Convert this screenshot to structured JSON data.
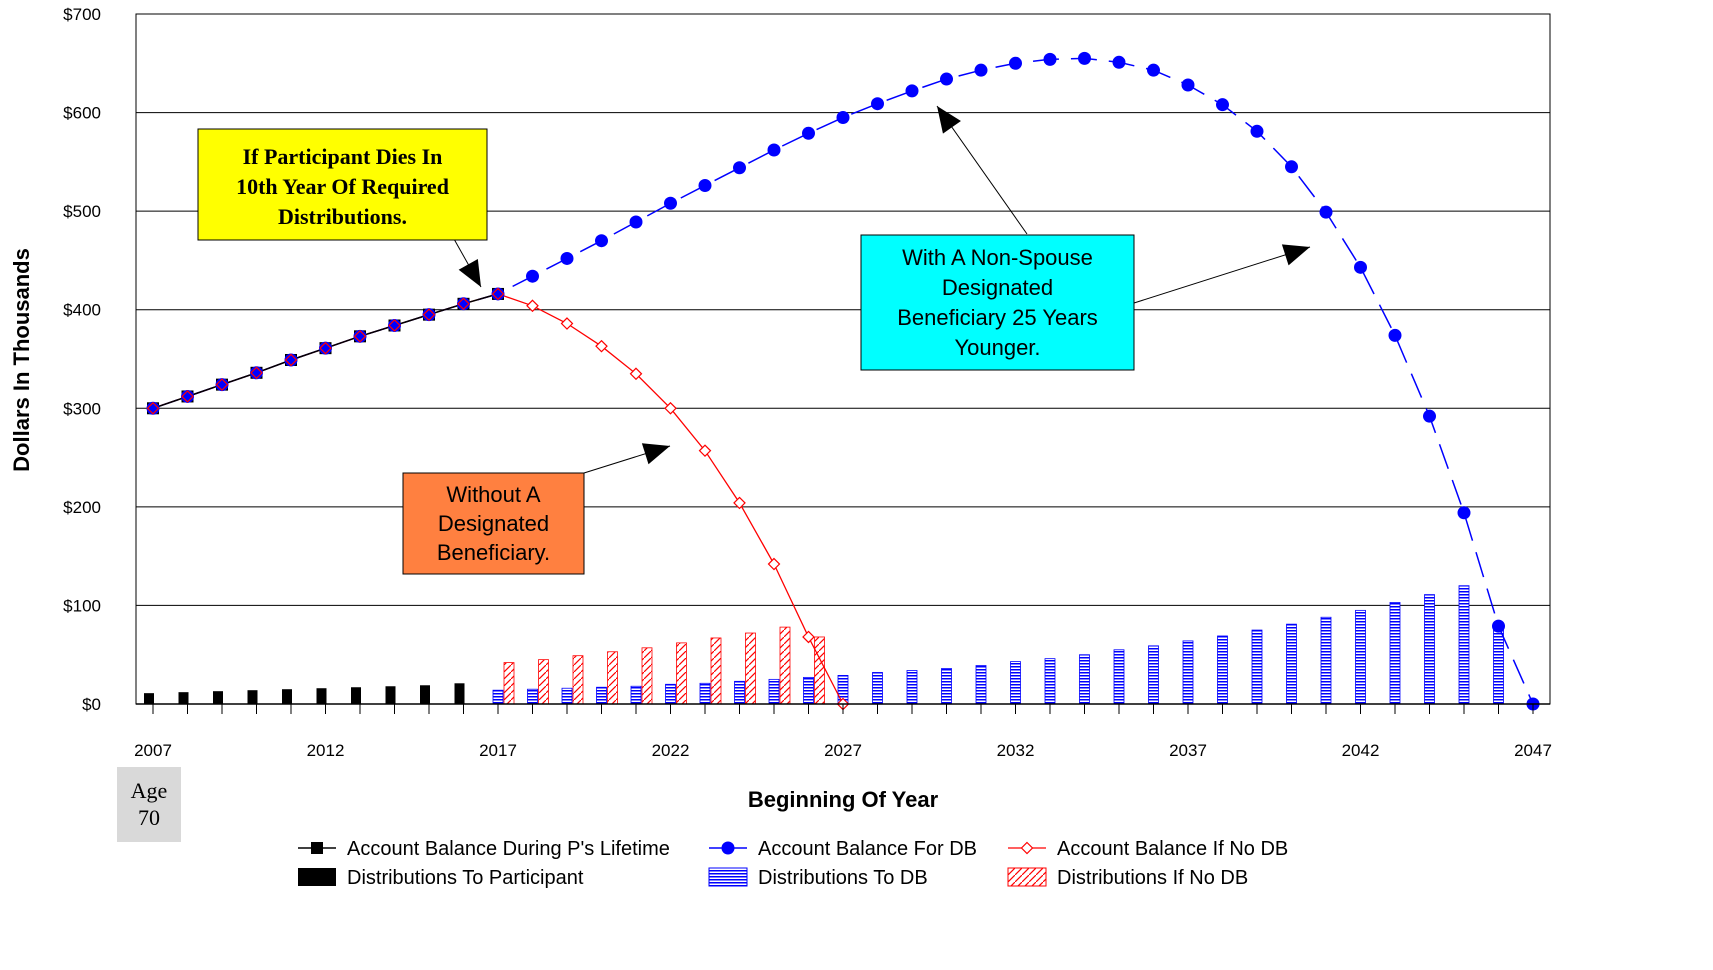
{
  "chart_data": {
    "type": "line",
    "ylabel": "Dollars In Thousands",
    "xlabel": "Beginning Of Year",
    "ylim": [
      0,
      700
    ],
    "xlim": [
      2007,
      2047
    ],
    "y_ticks": [
      0,
      100,
      200,
      300,
      400,
      500,
      600,
      700
    ],
    "y_tick_labels": [
      "$0",
      "$100",
      "$200",
      "$300",
      "$400",
      "$500",
      "$600",
      "$700"
    ],
    "x_ticks": [
      2007,
      2012,
      2017,
      2022,
      2027,
      2032,
      2037,
      2042,
      2047
    ],
    "x_tick_labels": [
      "2007",
      "2012",
      "2017",
      "2022",
      "2027",
      "2032",
      "2037",
      "2042",
      "2047"
    ],
    "grid": "horizontal",
    "series": [
      {
        "name": "Account Balance During P's Lifetime",
        "kind": "line-square-markers",
        "x": [
          2007,
          2008,
          2009,
          2010,
          2011,
          2012,
          2013,
          2014,
          2015,
          2016,
          2017
        ],
        "values": [
          300,
          312,
          324,
          336,
          349,
          361,
          373,
          384,
          395,
          406,
          416
        ]
      },
      {
        "name": "Account Balance For DB",
        "kind": "dashed-line-circle-markers",
        "x": [
          2007,
          2008,
          2009,
          2010,
          2011,
          2012,
          2013,
          2014,
          2015,
          2016,
          2017,
          2018,
          2019,
          2020,
          2021,
          2022,
          2023,
          2024,
          2025,
          2026,
          2027,
          2028,
          2029,
          2030,
          2031,
          2032,
          2033,
          2034,
          2035,
          2036,
          2037,
          2038,
          2039,
          2040,
          2041,
          2042,
          2043,
          2044,
          2045,
          2046,
          2047
        ],
        "values": [
          300,
          312,
          324,
          336,
          349,
          361,
          373,
          384,
          395,
          406,
          416,
          434,
          452,
          470,
          489,
          508,
          526,
          544,
          562,
          579,
          595,
          609,
          622,
          634,
          643,
          650,
          654,
          655,
          651,
          643,
          628,
          608,
          581,
          545,
          499,
          443,
          374,
          292,
          194,
          79,
          0
        ]
      },
      {
        "name": "Account Balance If No DB",
        "kind": "line-diamond-markers",
        "x": [
          2007,
          2008,
          2009,
          2010,
          2011,
          2012,
          2013,
          2014,
          2015,
          2016,
          2017,
          2018,
          2019,
          2020,
          2021,
          2022,
          2023,
          2024,
          2025,
          2026,
          2027
        ],
        "values": [
          300,
          312,
          324,
          336,
          349,
          361,
          373,
          384,
          395,
          406,
          416,
          404,
          386,
          363,
          335,
          300,
          257,
          204,
          142,
          68,
          0
        ]
      },
      {
        "name": "Distributions To Participant",
        "kind": "bar-solid",
        "x": [
          2007,
          2008,
          2009,
          2010,
          2011,
          2012,
          2013,
          2014,
          2015,
          2016
        ],
        "values": [
          11,
          12,
          13,
          14,
          15,
          16,
          17,
          18,
          19,
          21
        ]
      },
      {
        "name": "Distributions To DB",
        "kind": "bar-horizontal-hatch",
        "x": [
          2017,
          2018,
          2019,
          2020,
          2021,
          2022,
          2023,
          2024,
          2025,
          2026,
          2027,
          2028,
          2029,
          2030,
          2031,
          2032,
          2033,
          2034,
          2035,
          2036,
          2037,
          2038,
          2039,
          2040,
          2041,
          2042,
          2043,
          2044,
          2045,
          2046
        ],
        "values": [
          14,
          15,
          16,
          17,
          18,
          20,
          21,
          23,
          25,
          27,
          29,
          32,
          34,
          36,
          39,
          43,
          46,
          50,
          55,
          59,
          64,
          69,
          75,
          81,
          88,
          95,
          103,
          111,
          120,
          79
        ]
      },
      {
        "name": "Distributions If No DB",
        "kind": "bar-diagonal-hatch",
        "x": [
          2017,
          2018,
          2019,
          2020,
          2021,
          2022,
          2023,
          2024,
          2025,
          2026
        ],
        "values": [
          42,
          45,
          49,
          53,
          57,
          62,
          67,
          72,
          78,
          68
        ]
      }
    ],
    "annotations": [
      {
        "text": "If Participant Dies In 10th Year Of Required Distributions.",
        "lines": [
          "If Participant Dies In",
          "10th Year Of Required",
          "Distributions."
        ],
        "color": "#ffff00"
      },
      {
        "text": "With A Non-Spouse Designated Beneficiary 25 Years Younger.",
        "lines": [
          "With A Non-Spouse",
          "Designated",
          "Beneficiary 25 Years",
          "Younger."
        ],
        "color": "#00ffff"
      },
      {
        "text": "Without A Designated Beneficiary.",
        "lines": [
          "Without A",
          "Designated",
          "Beneficiary."
        ],
        "color": "#ff8040"
      }
    ],
    "age_box": {
      "lines": [
        "Age",
        "70"
      ]
    },
    "legend_placement": "bottom",
    "colors": {
      "lifetime": "#000000",
      "db": "#0000ff",
      "nodb": "#ff0000",
      "age_box_bg": "#d9d9d9"
    }
  }
}
